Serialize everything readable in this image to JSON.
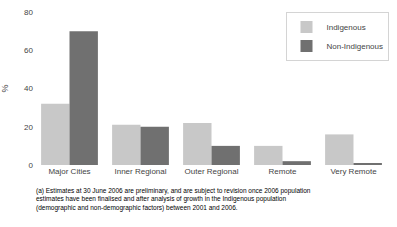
{
  "chart_data": {
    "type": "bar",
    "categories": [
      "Major Cities",
      "Inner Regional",
      "Outer Regional",
      "Remote",
      "Very Remote"
    ],
    "series": [
      {
        "name": "Indigenous",
        "color": "#c8c8c8",
        "values": [
          32,
          21,
          22,
          10,
          16
        ]
      },
      {
        "name": "Non-Indigenous",
        "color": "#707070",
        "values": [
          70,
          20,
          10,
          2,
          1
        ]
      }
    ],
    "ylabel": "%",
    "ylim": [
      0,
      80
    ],
    "yticks": [
      0,
      20,
      40,
      60,
      80
    ],
    "grid": false,
    "legend": "upper right",
    "footnote": "(a) Estimates at 30 June 2006 are preliminary, and are subject to revision once 2006 population\nestimates have been finalised and after analysis of growth in the Indigenous population\n(demographic and non-demographic factors) between 2001 and 2006."
  }
}
